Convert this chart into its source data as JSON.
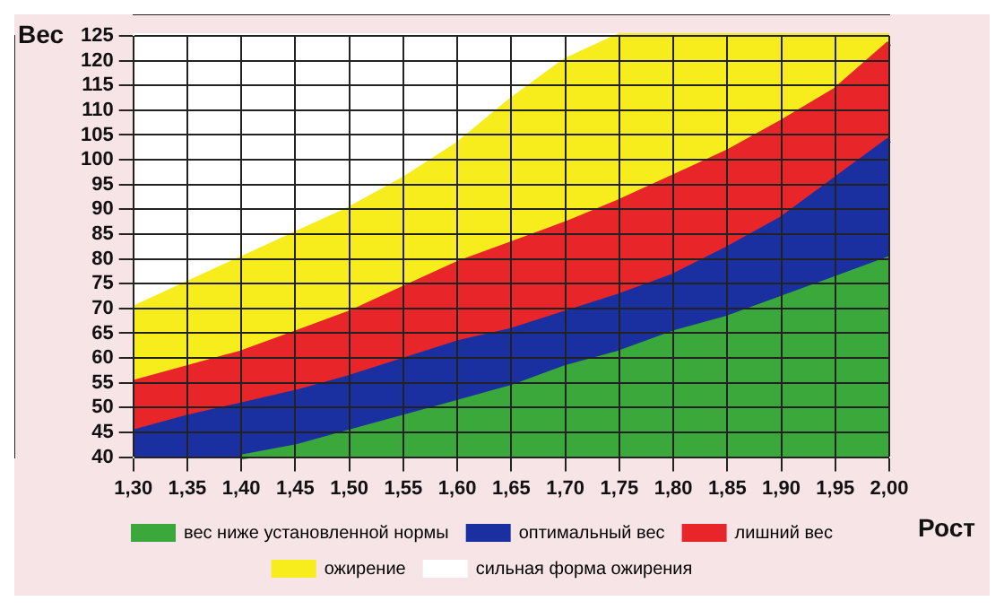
{
  "chart_data": {
    "type": "area",
    "xlabel": "Рост",
    "ylabel": "Вес",
    "x": [
      1.3,
      1.35,
      1.4,
      1.45,
      1.5,
      1.55,
      1.6,
      1.65,
      1.7,
      1.75,
      1.8,
      1.85,
      1.9,
      1.95,
      2.0
    ],
    "series": [
      {
        "name": "вес ниже установленной нормы",
        "color": "#3aa83a",
        "values": [
          null,
          null,
          40,
          42,
          45,
          48,
          51,
          54,
          58,
          61,
          65,
          68,
          72,
          76,
          80
        ]
      },
      {
        "name": "оптимальный вес",
        "color": "#1a2fa0",
        "values": [
          45,
          48,
          50.5,
          53,
          56,
          59.5,
          63,
          65.5,
          69,
          72.5,
          76.5,
          82,
          88,
          96,
          104
        ]
      },
      {
        "name": "лишний вес",
        "color": "#e8262a",
        "values": [
          55,
          58,
          61,
          65,
          69,
          74,
          79,
          83,
          87,
          91.5,
          96.5,
          101.5,
          107.5,
          114,
          123.5
        ]
      },
      {
        "name": "ожирение",
        "color": "#f7ec1c",
        "values": [
          70,
          75,
          80,
          85,
          90,
          96,
          103,
          112,
          120,
          125,
          125,
          125,
          125,
          125,
          125
        ]
      },
      {
        "name": "сильная форма ожирения",
        "color": "#ffffff",
        "values": [
          125,
          125,
          125,
          125,
          125,
          125,
          125,
          125,
          125,
          125,
          125,
          125,
          125,
          125,
          125
        ]
      }
    ],
    "xlim": [
      1.3,
      2.0
    ],
    "xticks": [
      {
        "value": 1.3,
        "label": "1,30"
      },
      {
        "value": 1.35,
        "label": "1,35"
      },
      {
        "value": 1.4,
        "label": "1,40"
      },
      {
        "value": 1.45,
        "label": "1,45"
      },
      {
        "value": 1.5,
        "label": "1,50"
      },
      {
        "value": 1.55,
        "label": "1,55"
      },
      {
        "value": 1.6,
        "label": "1,60"
      },
      {
        "value": 1.65,
        "label": "1,65"
      },
      {
        "value": 1.7,
        "label": "1,70"
      },
      {
        "value": 1.75,
        "label": "1,75"
      },
      {
        "value": 1.8,
        "label": "1,80"
      },
      {
        "value": 1.85,
        "label": "1,85"
      },
      {
        "value": 1.9,
        "label": "1,90"
      },
      {
        "value": 1.95,
        "label": "1,95"
      },
      {
        "value": 2.0,
        "label": "2,00"
      }
    ],
    "ylim": [
      40,
      125
    ],
    "yticks": [
      40,
      45,
      50,
      55,
      60,
      65,
      70,
      75,
      80,
      85,
      90,
      95,
      100,
      105,
      110,
      115,
      120,
      125
    ],
    "grid": true,
    "legend": "bottom",
    "marker": "none"
  }
}
